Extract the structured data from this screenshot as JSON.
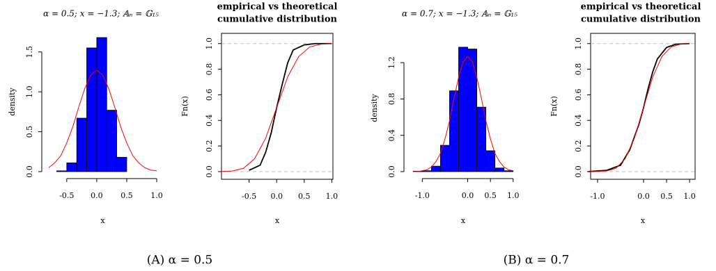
{
  "chart_data": [
    {
      "type": "histogram",
      "title": "α = 0.5; x = −1.3; 𝔸ₙ = 𝔾₁₅",
      "xlabel": "x",
      "ylabel": "density",
      "bins": [
        -0.667,
        -0.5,
        -0.333,
        -0.167,
        0,
        0.167,
        0.333,
        0.5
      ],
      "values": [
        0.01,
        0.11,
        0.67,
        1.55,
        1.68,
        0.77,
        0.18
      ],
      "color": "#0000ff",
      "curve": {
        "color": "#ff0000",
        "x": [
          -0.8,
          -0.7,
          -0.6,
          -0.5,
          -0.4,
          -0.3,
          -0.2,
          -0.1,
          0,
          0.1,
          0.2,
          0.3,
          0.4,
          0.5,
          0.6,
          0.7,
          0.8,
          0.9,
          1.0
        ],
        "values": [
          0.05,
          0.11,
          0.2,
          0.36,
          0.56,
          0.81,
          1.04,
          1.21,
          1.27,
          1.21,
          1.04,
          0.81,
          0.56,
          0.36,
          0.2,
          0.11,
          0.05,
          0.02,
          0.01
        ]
      },
      "xlim": [
        -0.8,
        1.0
      ],
      "ylim": [
        0,
        1.75
      ],
      "xticks": [
        {
          "value": -0.5,
          "label": "-0.5"
        },
        {
          "value": 0,
          "label": "0.0"
        },
        {
          "value": 0.5,
          "label": "0.5"
        },
        {
          "value": 1,
          "label": "1.0"
        }
      ],
      "yticks": [
        {
          "value": 0,
          "label": "0.0"
        },
        {
          "value": 0.5,
          "label": "0.5"
        },
        {
          "value": 1,
          "label": "1.0"
        },
        {
          "value": 1.5,
          "label": "1.5"
        }
      ]
    },
    {
      "type": "line",
      "title": [
        "empirical vs theoretical",
        "cumulative distribution"
      ],
      "xlabel": "x",
      "ylabel": "Fn(x)",
      "series": [
        {
          "color": "#000000",
          "x": [
            -0.5,
            -0.3,
            -0.2,
            -0.1,
            0,
            0.1,
            0.2,
            0.3,
            0.5,
            0.7,
            1.0
          ],
          "values": [
            0.01,
            0.05,
            0.15,
            0.3,
            0.5,
            0.68,
            0.85,
            0.95,
            0.99,
            1.0,
            1.0
          ]
        },
        {
          "color": "#ff0000",
          "x": [
            -1.0,
            -0.8,
            -0.6,
            -0.4,
            -0.2,
            0,
            0.2,
            0.4,
            0.6,
            0.8,
            1.0
          ],
          "values": [
            0.001,
            0.005,
            0.026,
            0.1,
            0.26,
            0.5,
            0.74,
            0.9,
            0.974,
            0.995,
            1.0
          ]
        }
      ],
      "hlines": [
        0,
        1
      ],
      "hline_color": "#bbbbbb",
      "xlim": [
        -1.0,
        1.02
      ],
      "ylim": [
        -0.06,
        1.08
      ],
      "xticks": [
        {
          "value": -0.5,
          "label": "-0.5"
        },
        {
          "value": 0,
          "label": "0.0"
        },
        {
          "value": 0.5,
          "label": "0.5"
        },
        {
          "value": 1,
          "label": "1.0"
        }
      ],
      "yticks": [
        {
          "value": 0,
          "label": "0.0"
        },
        {
          "value": 0.2,
          "label": "0.2"
        },
        {
          "value": 0.4,
          "label": "0.4"
        },
        {
          "value": 0.6,
          "label": "0.6"
        },
        {
          "value": 0.8,
          "label": "0.8"
        },
        {
          "value": 1,
          "label": "1.0"
        }
      ]
    },
    {
      "type": "histogram",
      "title": "α = 0.7; x = −1.3; 𝔸ₙ = 𝔾₁₅",
      "xlabel": "x",
      "ylabel": "density",
      "bins": [
        -1.2,
        -1.0,
        -0.8,
        -0.6,
        -0.4,
        -0.2,
        0,
        0.2,
        0.4,
        0.6,
        0.8,
        1.0
      ],
      "values": [
        0.005,
        0.01,
        0.06,
        0.29,
        0.89,
        1.37,
        1.35,
        0.71,
        0.23,
        0.04,
        0.01
      ],
      "color": "#0000ff",
      "curve": {
        "color": "#ff0000",
        "x": [
          -1.2,
          -1.1,
          -1.0,
          -0.9,
          -0.8,
          -0.7,
          -0.6,
          -0.5,
          -0.4,
          -0.3,
          -0.2,
          -0.1,
          0,
          0.1,
          0.2,
          0.3,
          0.4,
          0.5,
          0.6,
          0.7,
          0.8,
          0.9,
          1.0
        ],
        "values": [
          0,
          0,
          0.01,
          0.02,
          0.05,
          0.11,
          0.2,
          0.36,
          0.56,
          0.81,
          1.04,
          1.21,
          1.27,
          1.21,
          1.04,
          0.81,
          0.56,
          0.36,
          0.2,
          0.11,
          0.05,
          0.02,
          0.01
        ]
      },
      "xlim": [
        -1.25,
        1.05
      ],
      "ylim": [
        0,
        1.4
      ],
      "xticks": [
        {
          "value": -1,
          "label": "-1.0"
        },
        {
          "value": 0,
          "label": "0.0"
        },
        {
          "value": 0.5,
          "label": "0.5"
        },
        {
          "value": 1,
          "label": "1.0"
        }
      ],
      "yticks": [
        {
          "value": 0,
          "label": "0.0"
        },
        {
          "value": 0.4,
          "label": "0.4"
        },
        {
          "value": 0.8,
          "label": "0.8"
        },
        {
          "value": 1.2,
          "label": "1.2"
        }
      ]
    },
    {
      "type": "line",
      "title": [
        "empirical vs theoretical",
        "cumulative distribution"
      ],
      "xlabel": "x",
      "ylabel": "Fn(x)",
      "series": [
        {
          "color": "#000000",
          "x": [
            -1.2,
            -0.8,
            -0.5,
            -0.3,
            -0.2,
            -0.1,
            0,
            0.1,
            0.2,
            0.3,
            0.5,
            0.7,
            1.0
          ],
          "values": [
            0,
            0.01,
            0.05,
            0.17,
            0.27,
            0.37,
            0.5,
            0.65,
            0.78,
            0.88,
            0.97,
            0.995,
            1.0
          ]
        },
        {
          "color": "#ff0000",
          "x": [
            -1.2,
            -1.0,
            -0.8,
            -0.6,
            -0.4,
            -0.2,
            0,
            0.2,
            0.4,
            0.6,
            0.8,
            1.0
          ],
          "values": [
            0,
            0.001,
            0.005,
            0.026,
            0.1,
            0.26,
            0.5,
            0.74,
            0.9,
            0.974,
            0.995,
            1.0
          ]
        }
      ],
      "hlines": [
        0,
        1
      ],
      "hline_color": "#bbbbbb",
      "xlim": [
        -1.15,
        1.12
      ],
      "ylim": [
        -0.06,
        1.08
      ],
      "xticks": [
        {
          "value": -1,
          "label": "-1.0"
        },
        {
          "value": 0,
          "label": "0.0"
        },
        {
          "value": 0.5,
          "label": "0.5"
        },
        {
          "value": 1,
          "label": "1.0"
        }
      ],
      "yticks": [
        {
          "value": 0,
          "label": "0.0"
        },
        {
          "value": 0.2,
          "label": "0.2"
        },
        {
          "value": 0.4,
          "label": "0.4"
        },
        {
          "value": 0.6,
          "label": "0.6"
        },
        {
          "value": 0.8,
          "label": "0.8"
        },
        {
          "value": 1,
          "label": "1.0"
        }
      ]
    }
  ],
  "captions": [
    "(A) α = 0.5",
    "(B) α = 0.7"
  ]
}
